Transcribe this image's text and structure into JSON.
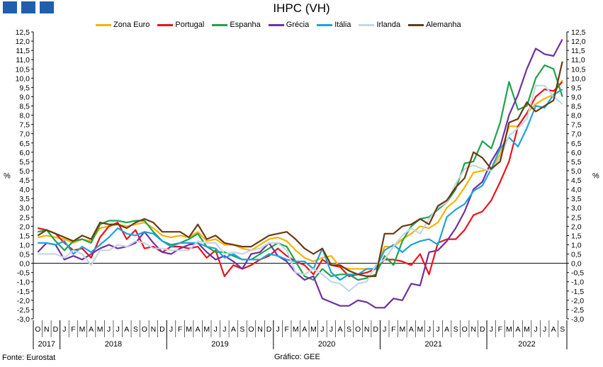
{
  "chart_data": {
    "type": "line",
    "title": "IHPC (VH)",
    "ylabel": "%",
    "ylabel_right": "%",
    "ylim": [
      -3.0,
      12.5
    ],
    "ytick_step": 0.5,
    "ytick_labels": [
      "-3,0",
      "-2,5",
      "-2,0",
      "-1,5",
      "-1,0",
      "-0,5",
      "0,0",
      "0,5",
      "1,0",
      "1,5",
      "2,0",
      "2,5",
      "3,0",
      "3,5",
      "4,0",
      "4,5",
      "5,0",
      "5,5",
      "6,0",
      "6,5",
      "7,0",
      "7,5",
      "8,0",
      "8,5",
      "9,0",
      "9,5",
      "10,0",
      "10,5",
      "11,0",
      "11,5",
      "12,0",
      "12,5"
    ],
    "grid": false,
    "legend_position": "top-center",
    "months": [
      "O",
      "N",
      "D",
      "J",
      "F",
      "M",
      "A",
      "M",
      "J",
      "J",
      "A",
      "S",
      "O",
      "N",
      "D",
      "J",
      "F",
      "M",
      "A",
      "M",
      "J",
      "J",
      "A",
      "S",
      "O",
      "N",
      "D",
      "J",
      "F",
      "M",
      "A",
      "M",
      "J",
      "J",
      "A",
      "S",
      "O",
      "N",
      "D",
      "J",
      "F",
      "M",
      "A",
      "M",
      "J",
      "J",
      "A",
      "S",
      "O",
      "N",
      "D",
      "J",
      "F",
      "M",
      "A",
      "M",
      "J",
      "J",
      "A",
      "S"
    ],
    "years": [
      {
        "label": "2017",
        "start": 0,
        "end": 2
      },
      {
        "label": "2018",
        "start": 3,
        "end": 14
      },
      {
        "label": "2019",
        "start": 15,
        "end": 26
      },
      {
        "label": "2020",
        "start": 27,
        "end": 38
      },
      {
        "label": "2021",
        "start": 39,
        "end": 50
      },
      {
        "label": "2022",
        "start": 51,
        "end": 59
      }
    ],
    "series": [
      {
        "name": "Zona Euro",
        "color": "#f4b400",
        "values": [
          1.4,
          1.5,
          1.4,
          1.3,
          1.1,
          1.3,
          1.2,
          1.9,
          2.0,
          2.1,
          2.0,
          2.1,
          2.2,
          1.9,
          1.5,
          1.4,
          1.5,
          1.4,
          1.7,
          1.2,
          1.3,
          1.0,
          1.0,
          0.8,
          0.7,
          1.0,
          1.3,
          1.4,
          1.2,
          0.7,
          0.3,
          0.1,
          0.3,
          0.4,
          -0.2,
          -0.3,
          -0.3,
          -0.3,
          -0.3,
          0.9,
          0.9,
          1.3,
          1.6,
          2.0,
          1.9,
          2.2,
          3.0,
          3.4,
          4.1,
          4.9,
          5.0,
          5.1,
          5.9,
          7.4,
          7.4,
          8.1,
          8.6,
          8.9,
          9.1,
          9.9
        ]
      },
      {
        "name": "Portugal",
        "color": "#e8141b",
        "values": [
          1.9,
          1.8,
          1.6,
          1.1,
          0.7,
          0.8,
          0.3,
          1.4,
          2.0,
          2.2,
          1.3,
          1.8,
          0.8,
          0.9,
          0.6,
          0.9,
          0.9,
          0.8,
          0.9,
          0.3,
          0.7,
          -0.7,
          -0.1,
          -0.3,
          -0.1,
          0.2,
          0.4,
          0.8,
          0.4,
          0.1,
          -0.1,
          -0.6,
          0.2,
          -0.1,
          -0.2,
          -0.7,
          -0.6,
          -0.5,
          -0.3,
          0.2,
          0.2,
          0.1,
          -0.1,
          0.5,
          -0.6,
          1.1,
          1.3,
          1.3,
          1.8,
          2.6,
          2.8,
          3.4,
          4.4,
          5.5,
          7.4,
          8.1,
          9.0,
          9.4,
          9.3,
          9.8
        ]
      },
      {
        "name": "Espanha",
        "color": "#1fa34a",
        "values": [
          1.7,
          1.8,
          1.2,
          0.7,
          1.2,
          1.3,
          1.1,
          2.1,
          2.3,
          2.3,
          2.2,
          2.3,
          2.3,
          1.7,
          1.2,
          1.0,
          1.1,
          1.3,
          1.6,
          0.9,
          0.6,
          0.6,
          0.4,
          0.2,
          0.2,
          0.5,
          0.8,
          1.1,
          0.9,
          0.1,
          -0.7,
          -0.9,
          -0.3,
          -0.7,
          -0.6,
          -0.6,
          -0.9,
          -0.8,
          -0.6,
          0.4,
          -0.1,
          1.2,
          2.0,
          2.4,
          2.5,
          2.9,
          3.3,
          4.0,
          5.4,
          5.5,
          6.6,
          6.2,
          7.6,
          9.8,
          8.3,
          8.5,
          10.0,
          10.7,
          10.5,
          9.0
        ]
      },
      {
        "name": "Grécia",
        "color": "#7030a0",
        "values": [
          0.6,
          1.1,
          1.0,
          0.2,
          0.4,
          0.2,
          0.5,
          0.8,
          1.0,
          0.8,
          0.9,
          1.1,
          1.7,
          1.1,
          0.6,
          0.5,
          0.8,
          1.0,
          1.1,
          0.6,
          0.2,
          0.4,
          0.1,
          -0.3,
          0.5,
          0.6,
          1.1,
          0.4,
          0.1,
          -0.5,
          -0.9,
          -0.7,
          -1.9,
          -2.1,
          -2.3,
          -2.3,
          -2.0,
          -2.1,
          -2.4,
          -2.4,
          -1.9,
          -2.0,
          -1.1,
          -1.2,
          0.6,
          0.7,
          1.2,
          1.9,
          2.8,
          4.0,
          4.4,
          5.5,
          6.3,
          8.0,
          9.1,
          10.5,
          11.6,
          11.3,
          11.2,
          12.1
        ]
      },
      {
        "name": "Itália",
        "color": "#1ba3e0",
        "values": [
          1.1,
          1.1,
          1.0,
          1.2,
          0.5,
          0.9,
          0.6,
          1.0,
          1.4,
          1.9,
          1.6,
          1.5,
          1.7,
          1.6,
          1.2,
          0.9,
          1.1,
          1.1,
          1.1,
          0.9,
          0.8,
          0.3,
          0.5,
          0.2,
          0.2,
          0.2,
          0.5,
          0.4,
          0.2,
          0.1,
          0.1,
          -0.3,
          0.8,
          -0.5,
          -0.9,
          -0.6,
          -0.6,
          -0.3,
          -0.3,
          0.7,
          1.0,
          0.6,
          1.0,
          1.2,
          1.3,
          1.0,
          2.5,
          2.9,
          3.2,
          3.9,
          4.2,
          5.1,
          6.2,
          6.8,
          6.3,
          7.3,
          8.5,
          8.4,
          9.1,
          9.4
        ]
      },
      {
        "name": "Irlanda",
        "color": "#c5d5e6",
        "values": [
          0.5,
          0.5,
          0.5,
          0.3,
          0.7,
          0.5,
          -0.1,
          0.7,
          0.7,
          1.0,
          0.9,
          1.2,
          1.1,
          0.8,
          0.8,
          0.7,
          0.7,
          0.7,
          1.2,
          1.1,
          1.1,
          0.5,
          0.6,
          0.5,
          0.7,
          0.8,
          1.1,
          1.1,
          0.7,
          -0.5,
          -0.6,
          -0.3,
          -0.6,
          -1.0,
          -1.1,
          -1.5,
          -1.1,
          -1.0,
          -0.1,
          0.2,
          0.9,
          1.5,
          1.9,
          1.6,
          2.4,
          3.0,
          3.3,
          4.3,
          5.1,
          5.3,
          5.1,
          5.0,
          5.7,
          6.9,
          7.3,
          7.8,
          9.6,
          9.6,
          9.0,
          8.6
        ]
      },
      {
        "name": "Alemanha",
        "color": "#6b3a10",
        "values": [
          1.5,
          1.8,
          1.6,
          1.4,
          1.2,
          1.5,
          1.3,
          2.2,
          2.1,
          2.1,
          1.9,
          2.2,
          2.4,
          2.2,
          1.7,
          1.7,
          1.7,
          1.4,
          2.1,
          1.3,
          1.5,
          1.1,
          1.0,
          0.9,
          0.9,
          1.2,
          1.5,
          1.6,
          1.7,
          1.3,
          0.8,
          0.5,
          0.8,
          -0.1,
          -0.1,
          -0.4,
          -0.6,
          -0.7,
          -0.7,
          1.6,
          1.6,
          2.0,
          2.1,
          2.4,
          2.1,
          3.1,
          3.4,
          4.1,
          4.6,
          6.0,
          5.7,
          5.1,
          5.5,
          7.6,
          7.8,
          8.7,
          8.2,
          8.5,
          8.8,
          10.9
        ]
      }
    ]
  },
  "footer": {
    "source": "Fonte: Eurostat",
    "credit": "Gráfico: GEE"
  }
}
